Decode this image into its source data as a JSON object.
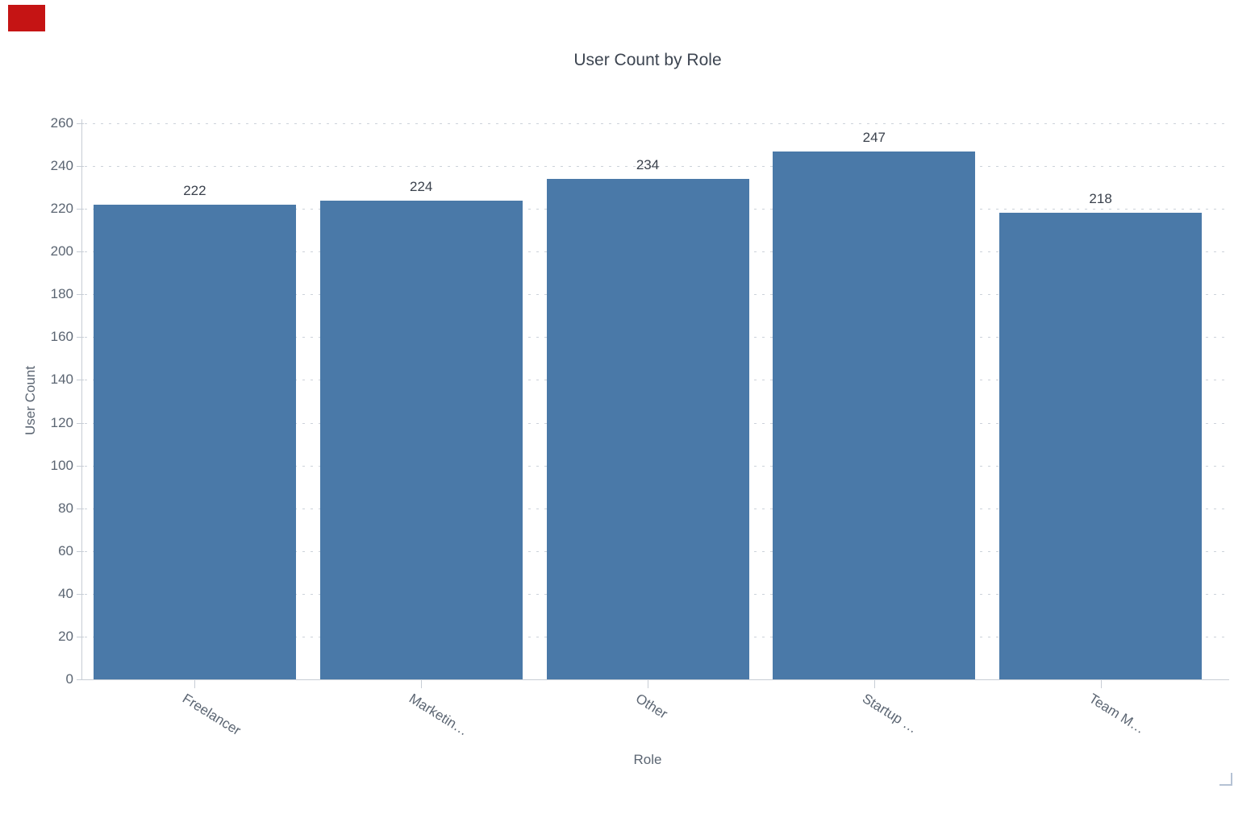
{
  "chart_data": {
    "type": "bar",
    "title": "User Count by Role",
    "categories": [
      "Freelancer",
      "Marketin…",
      "Other",
      "Startup …",
      "Team M…"
    ],
    "values": [
      222,
      224,
      234,
      247,
      218
    ],
    "value_labels": [
      "222",
      "224",
      "234",
      "247",
      "218"
    ],
    "xlabel": "Role",
    "ylabel": "User Count",
    "ylim": [
      0,
      260
    ],
    "ytick_step": 20,
    "yticks": [
      0,
      20,
      40,
      60,
      80,
      100,
      120,
      140,
      160,
      180,
      200,
      220,
      240,
      260
    ],
    "grid": "horizontal-dashed",
    "legend": "none",
    "bar_color": "#4a79a8"
  },
  "palette": {
    "bar": "#4a79a8",
    "grid": "#ccd2da",
    "axis": "#c7cdd5",
    "title_text": "#3d4551",
    "tick_text": "#5b6572",
    "value_text": "#3a414c",
    "marker_red": "#c51414",
    "corner": "#b5c2d4"
  }
}
